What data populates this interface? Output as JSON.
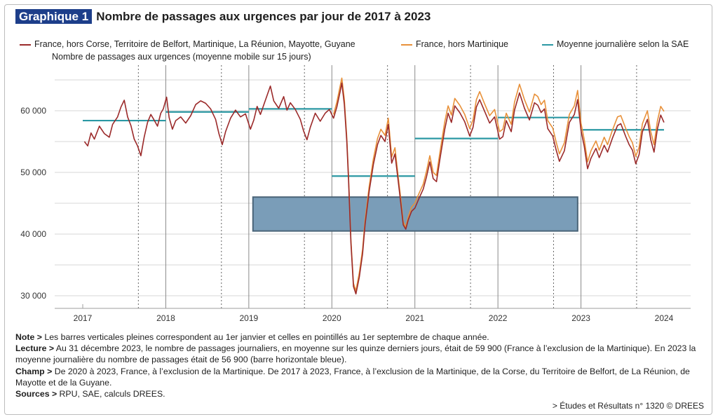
{
  "figure": {
    "badge": "Graphique 1",
    "title": "Nombre de passages aux urgences par jour de 2017 à 2023",
    "subtitle": "Nombre de passages aux urgences (moyenne mobile sur 15 jours)"
  },
  "notes": {
    "note_label": "Note >",
    "note_text": "Les barres verticales pleines correspondent au 1er janvier et celles en pointillés au 1er septembre de chaque année.",
    "lecture_label": "Lecture >",
    "lecture_text": "Au 31 décembre 2023, le nombre de passages journaliers, en moyenne sur les quinze derniers jours, était de 59 900 (France à l’exclusion de la Martinique). En 2023 la moyenne journalière du nombre de passages était de 56 900 (barre horizontale bleue).",
    "champ_label": "Champ >",
    "champ_text": "De 2020 à 2023, France, à l’exclusion de la Martinique. De 2017 à 2023, France, à l’exclusion de la Martinique, de la Corse, du Territoire de Belfort, de La Réunion, de Mayotte et de la Guyane.",
    "sources_label": "Sources >",
    "sources_text": "RPU, SAE, calculs DREES.",
    "citation": "> Études et Résultats n° 1320 © DREES"
  },
  "colors": {
    "series1": "#9b2a2a",
    "series2": "#e8913a",
    "sae": "#2b98a3",
    "box_fill": "#7a9db8",
    "box_stroke": "#4a6478",
    "axis": "#9e9e9e"
  },
  "chart_data": {
    "type": "line",
    "title": "Nombre de passages aux urgences par jour de 2017 à 2023",
    "ylabel": "Nombre de passages aux urgences (moyenne mobile sur 15 jours)",
    "xlabel": "",
    "xlim": [
      2017.0,
      2024.2
    ],
    "ylim": [
      29000,
      66500
    ],
    "x_ticks": [
      "2017",
      "2018",
      "2019",
      "2020",
      "2021",
      "2022",
      "2023",
      "2024"
    ],
    "y_ticks": [
      {
        "value": 30000,
        "label": "30 000"
      },
      {
        "value": 40000,
        "label": "40 000"
      },
      {
        "value": 50000,
        "label": "50 000"
      },
      {
        "value": 60000,
        "label": "60 000"
      }
    ],
    "grid": true,
    "legend_position": "top",
    "vertical_lines": {
      "solid_jan1": [
        2018.0,
        2019.0,
        2020.0,
        2021.0,
        2022.0,
        2023.0
      ],
      "dotted_sep1": [
        2017.67,
        2018.67,
        2019.67,
        2020.67,
        2021.67,
        2022.67,
        2023.67
      ]
    },
    "highlight_box": {
      "x": [
        2019.05,
        2022.96
      ],
      "y": [
        40500,
        46000
      ]
    },
    "series": [
      {
        "name": "France, hors Corse, Territoire de Belfort, Martinique, La Réunion, Mayotte, Guyane",
        "color": "#9b2a2a",
        "points": [
          [
            2017.02,
            55000
          ],
          [
            2017.06,
            54300
          ],
          [
            2017.1,
            56400
          ],
          [
            2017.14,
            55400
          ],
          [
            2017.2,
            57500
          ],
          [
            2017.26,
            56300
          ],
          [
            2017.32,
            55700
          ],
          [
            2017.36,
            57800
          ],
          [
            2017.42,
            59000
          ],
          [
            2017.46,
            60600
          ],
          [
            2017.5,
            61700
          ],
          [
            2017.54,
            59000
          ],
          [
            2017.58,
            57600
          ],
          [
            2017.62,
            55400
          ],
          [
            2017.66,
            54300
          ],
          [
            2017.7,
            52700
          ],
          [
            2017.74,
            55700
          ],
          [
            2017.78,
            58100
          ],
          [
            2017.82,
            59400
          ],
          [
            2017.86,
            58500
          ],
          [
            2017.9,
            57500
          ],
          [
            2017.94,
            59600
          ],
          [
            2017.97,
            60300
          ],
          [
            2018.01,
            62200
          ],
          [
            2018.04,
            58900
          ],
          [
            2018.08,
            57000
          ],
          [
            2018.12,
            58400
          ],
          [
            2018.18,
            59000
          ],
          [
            2018.24,
            58000
          ],
          [
            2018.3,
            59200
          ],
          [
            2018.36,
            61000
          ],
          [
            2018.42,
            61600
          ],
          [
            2018.48,
            61200
          ],
          [
            2018.54,
            60300
          ],
          [
            2018.6,
            58600
          ],
          [
            2018.64,
            56300
          ],
          [
            2018.68,
            54500
          ],
          [
            2018.72,
            56600
          ],
          [
            2018.78,
            58800
          ],
          [
            2018.84,
            60100
          ],
          [
            2018.9,
            59000
          ],
          [
            2018.96,
            59500
          ],
          [
            2019.02,
            57000
          ],
          [
            2019.06,
            58500
          ],
          [
            2019.1,
            60700
          ],
          [
            2019.14,
            59400
          ],
          [
            2019.2,
            61700
          ],
          [
            2019.26,
            64000
          ],
          [
            2019.3,
            61600
          ],
          [
            2019.36,
            60400
          ],
          [
            2019.42,
            62300
          ],
          [
            2019.46,
            60100
          ],
          [
            2019.5,
            61300
          ],
          [
            2019.56,
            60200
          ],
          [
            2019.62,
            58600
          ],
          [
            2019.66,
            56700
          ],
          [
            2019.7,
            55300
          ],
          [
            2019.74,
            57300
          ],
          [
            2019.8,
            59600
          ],
          [
            2019.86,
            58300
          ],
          [
            2019.92,
            59600
          ],
          [
            2019.97,
            60200
          ],
          [
            2020.02,
            58800
          ],
          [
            2020.06,
            60600
          ],
          [
            2020.1,
            63100
          ],
          [
            2020.12,
            64500
          ],
          [
            2020.15,
            61000
          ],
          [
            2020.18,
            55000
          ],
          [
            2020.2,
            49000
          ],
          [
            2020.23,
            38500
          ],
          [
            2020.26,
            31500
          ],
          [
            2020.29,
            30300
          ],
          [
            2020.33,
            33000
          ],
          [
            2020.37,
            36800
          ],
          [
            2020.4,
            41600
          ],
          [
            2020.45,
            47000
          ],
          [
            2020.5,
            51300
          ],
          [
            2020.55,
            54500
          ],
          [
            2020.59,
            56000
          ],
          [
            2020.64,
            55000
          ],
          [
            2020.68,
            57800
          ],
          [
            2020.72,
            51500
          ],
          [
            2020.76,
            53000
          ],
          [
            2020.8,
            48500
          ],
          [
            2020.83,
            45000
          ],
          [
            2020.86,
            41500
          ],
          [
            2020.89,
            40800
          ],
          [
            2020.92,
            42300
          ],
          [
            2020.96,
            43700
          ],
          [
            2021.0,
            44200
          ],
          [
            2021.05,
            45800
          ],
          [
            2021.1,
            47300
          ],
          [
            2021.14,
            49300
          ],
          [
            2021.18,
            51700
          ],
          [
            2021.22,
            49000
          ],
          [
            2021.26,
            48500
          ],
          [
            2021.3,
            52000
          ],
          [
            2021.36,
            57000
          ],
          [
            2021.4,
            59600
          ],
          [
            2021.44,
            58100
          ],
          [
            2021.48,
            60800
          ],
          [
            2021.54,
            59700
          ],
          [
            2021.6,
            58200
          ],
          [
            2021.66,
            55900
          ],
          [
            2021.7,
            57300
          ],
          [
            2021.74,
            60600
          ],
          [
            2021.78,
            61800
          ],
          [
            2021.84,
            59900
          ],
          [
            2021.9,
            58000
          ],
          [
            2021.96,
            59000
          ],
          [
            2022.02,
            55400
          ],
          [
            2022.06,
            55800
          ],
          [
            2022.1,
            58400
          ],
          [
            2022.16,
            56600
          ],
          [
            2022.2,
            60100
          ],
          [
            2022.26,
            62900
          ],
          [
            2022.32,
            60400
          ],
          [
            2022.38,
            58500
          ],
          [
            2022.44,
            61300
          ],
          [
            2022.48,
            60900
          ],
          [
            2022.52,
            59700
          ],
          [
            2022.56,
            60300
          ],
          [
            2022.6,
            57100
          ],
          [
            2022.66,
            55900
          ],
          [
            2022.7,
            53700
          ],
          [
            2022.74,
            51800
          ],
          [
            2022.8,
            53500
          ],
          [
            2022.86,
            58100
          ],
          [
            2022.92,
            59400
          ],
          [
            2022.96,
            61800
          ],
          [
            2023.0,
            56800
          ],
          [
            2023.04,
            54200
          ],
          [
            2023.08,
            50600
          ],
          [
            2023.12,
            52300
          ],
          [
            2023.18,
            53900
          ],
          [
            2023.22,
            52400
          ],
          [
            2023.28,
            54400
          ],
          [
            2023.32,
            53300
          ],
          [
            2023.38,
            55600
          ],
          [
            2023.44,
            57600
          ],
          [
            2023.48,
            57900
          ],
          [
            2023.54,
            55800
          ],
          [
            2023.58,
            54500
          ],
          [
            2023.62,
            53600
          ],
          [
            2023.66,
            51400
          ],
          [
            2023.7,
            52900
          ],
          [
            2023.74,
            56600
          ],
          [
            2023.8,
            58600
          ],
          [
            2023.84,
            55300
          ],
          [
            2023.88,
            53300
          ],
          [
            2023.92,
            57000
          ],
          [
            2023.96,
            59300
          ],
          [
            2024.0,
            58100
          ]
        ]
      },
      {
        "name": "France, hors Martinique",
        "color": "#e8913a",
        "points": [
          [
            2020.02,
            59400
          ],
          [
            2020.06,
            61400
          ],
          [
            2020.1,
            64000
          ],
          [
            2020.12,
            65300
          ],
          [
            2020.15,
            61800
          ],
          [
            2020.18,
            55600
          ],
          [
            2020.2,
            49600
          ],
          [
            2020.23,
            39000
          ],
          [
            2020.26,
            32000
          ],
          [
            2020.29,
            30800
          ],
          [
            2020.33,
            33700
          ],
          [
            2020.37,
            37500
          ],
          [
            2020.4,
            42300
          ],
          [
            2020.45,
            47800
          ],
          [
            2020.5,
            52200
          ],
          [
            2020.55,
            55500
          ],
          [
            2020.59,
            57000
          ],
          [
            2020.64,
            56000
          ],
          [
            2020.68,
            58800
          ],
          [
            2020.72,
            52500
          ],
          [
            2020.76,
            54000
          ],
          [
            2020.8,
            49200
          ],
          [
            2020.83,
            45700
          ],
          [
            2020.86,
            42000
          ],
          [
            2020.89,
            41100
          ],
          [
            2020.92,
            42800
          ],
          [
            2020.96,
            44400
          ],
          [
            2021.0,
            45000
          ],
          [
            2021.05,
            46600
          ],
          [
            2021.1,
            48100
          ],
          [
            2021.14,
            50200
          ],
          [
            2021.18,
            52700
          ],
          [
            2021.22,
            50000
          ],
          [
            2021.26,
            49500
          ],
          [
            2021.3,
            53100
          ],
          [
            2021.36,
            58200
          ],
          [
            2021.4,
            60800
          ],
          [
            2021.44,
            59300
          ],
          [
            2021.48,
            62000
          ],
          [
            2021.54,
            60900
          ],
          [
            2021.6,
            59400
          ],
          [
            2021.66,
            57100
          ],
          [
            2021.7,
            58500
          ],
          [
            2021.74,
            61800
          ],
          [
            2021.78,
            63100
          ],
          [
            2021.84,
            61100
          ],
          [
            2021.9,
            59200
          ],
          [
            2021.96,
            60200
          ],
          [
            2022.02,
            56600
          ],
          [
            2022.06,
            57000
          ],
          [
            2022.1,
            59600
          ],
          [
            2022.16,
            57800
          ],
          [
            2022.2,
            61400
          ],
          [
            2022.26,
            64300
          ],
          [
            2022.32,
            61800
          ],
          [
            2022.38,
            59800
          ],
          [
            2022.44,
            62700
          ],
          [
            2022.48,
            62300
          ],
          [
            2022.52,
            61000
          ],
          [
            2022.56,
            61700
          ],
          [
            2022.6,
            58400
          ],
          [
            2022.66,
            57200
          ],
          [
            2022.7,
            55000
          ],
          [
            2022.74,
            53000
          ],
          [
            2022.8,
            54800
          ],
          [
            2022.86,
            59400
          ],
          [
            2022.92,
            60800
          ],
          [
            2022.96,
            63300
          ],
          [
            2023.0,
            58000
          ],
          [
            2023.04,
            55300
          ],
          [
            2023.08,
            51700
          ],
          [
            2023.12,
            53500
          ],
          [
            2023.18,
            55100
          ],
          [
            2023.22,
            53600
          ],
          [
            2023.28,
            55700
          ],
          [
            2023.32,
            54500
          ],
          [
            2023.38,
            56900
          ],
          [
            2023.44,
            59000
          ],
          [
            2023.48,
            59200
          ],
          [
            2023.54,
            57100
          ],
          [
            2023.58,
            55800
          ],
          [
            2023.62,
            54800
          ],
          [
            2023.66,
            52600
          ],
          [
            2023.7,
            54100
          ],
          [
            2023.74,
            57900
          ],
          [
            2023.8,
            60000
          ],
          [
            2023.84,
            56600
          ],
          [
            2023.88,
            54500
          ],
          [
            2023.92,
            58300
          ],
          [
            2023.96,
            60700
          ],
          [
            2024.0,
            59900
          ]
        ]
      },
      {
        "name": "Moyenne journalière selon la SAE",
        "color": "#2b98a3",
        "segments": [
          {
            "x": [
              2017.0,
              2018.0
            ],
            "y": 58400
          },
          {
            "x": [
              2018.0,
              2019.0
            ],
            "y": 59800
          },
          {
            "x": [
              2019.0,
              2020.0
            ],
            "y": 60300
          },
          {
            "x": [
              2020.0,
              2021.0
            ],
            "y": 49400
          },
          {
            "x": [
              2021.0,
              2022.0
            ],
            "y": 55500
          },
          {
            "x": [
              2022.0,
              2023.0
            ],
            "y": 58900
          },
          {
            "x": [
              2023.0,
              2024.0
            ],
            "y": 56900
          }
        ]
      }
    ]
  }
}
